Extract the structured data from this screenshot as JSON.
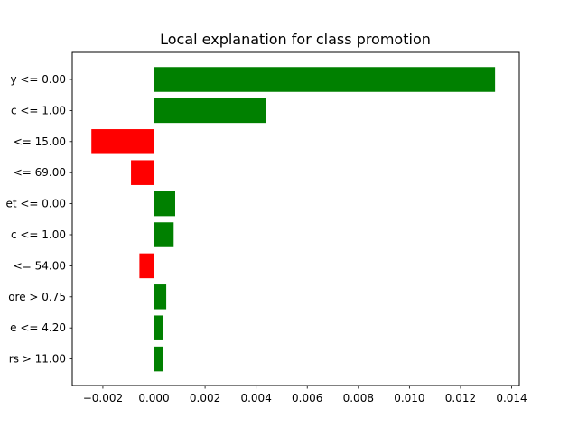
{
  "chart_data": {
    "type": "bar",
    "orientation": "horizontal",
    "title": "Local explanation for class promotion",
    "xlabel": "",
    "ylabel": "",
    "xlim": [
      -0.0032,
      0.0143
    ],
    "x_ticks": [
      -0.002,
      0.0,
      0.002,
      0.004,
      0.006,
      0.008,
      0.01,
      0.012,
      0.014
    ],
    "x_tick_labels": [
      "−0.002",
      "0.000",
      "0.002",
      "0.004",
      "0.006",
      "0.008",
      "0.010",
      "0.012",
      "0.014"
    ],
    "categories": [
      "y <= 0.00",
      "c <= 1.00",
      "<= 15.00",
      "<= 69.00",
      "et <= 0.00",
      "c <= 1.00",
      "<= 54.00",
      "ore > 0.75",
      "e <= 4.20",
      "rs > 11.00"
    ],
    "values": [
      0.01335,
      0.0044,
      -0.00245,
      -0.0009,
      0.00083,
      0.00077,
      -0.00057,
      0.00048,
      0.00035,
      0.00035
    ],
    "colors": {
      "positive": "#008000",
      "negative": "#ff0000"
    },
    "grid": false,
    "legend": "none"
  }
}
